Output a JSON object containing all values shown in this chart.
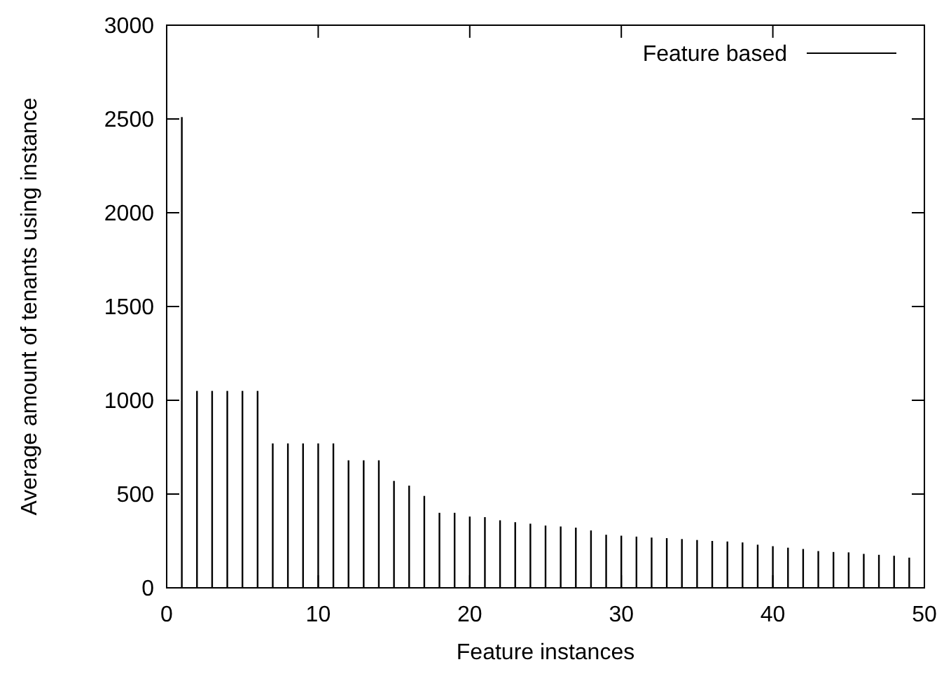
{
  "chart_data": {
    "type": "bar",
    "xlabel": "Feature instances",
    "ylabel": "Average amount of tenants using instance",
    "x": [
      1,
      2,
      3,
      4,
      5,
      6,
      7,
      8,
      9,
      10,
      11,
      12,
      13,
      14,
      15,
      16,
      17,
      18,
      19,
      20,
      21,
      22,
      23,
      24,
      25,
      26,
      27,
      28,
      29,
      30,
      31,
      32,
      33,
      34,
      35,
      36,
      37,
      38,
      39,
      40,
      41,
      42,
      43,
      44,
      45,
      46,
      47,
      48,
      49
    ],
    "series": [
      {
        "name": "Feature based",
        "color": "#000000",
        "values": [
          2510,
          1050,
          1050,
          1050,
          1050,
          1050,
          770,
          770,
          770,
          770,
          770,
          680,
          680,
          680,
          570,
          545,
          490,
          400,
          400,
          380,
          377,
          360,
          350,
          342,
          332,
          327,
          321,
          306,
          283,
          278,
          273,
          268,
          265,
          260,
          255,
          250,
          247,
          242,
          230,
          222,
          214,
          207,
          196,
          191,
          189,
          181,
          176,
          171,
          161
        ]
      }
    ],
    "xlim": [
      0,
      50
    ],
    "xticks": [
      0,
      10,
      20,
      30,
      40,
      50
    ],
    "ylim": [
      0,
      3000
    ],
    "yticks": [
      0,
      500,
      1000,
      1500,
      2000,
      2500,
      3000
    ],
    "grid": false,
    "legend": "top right"
  }
}
